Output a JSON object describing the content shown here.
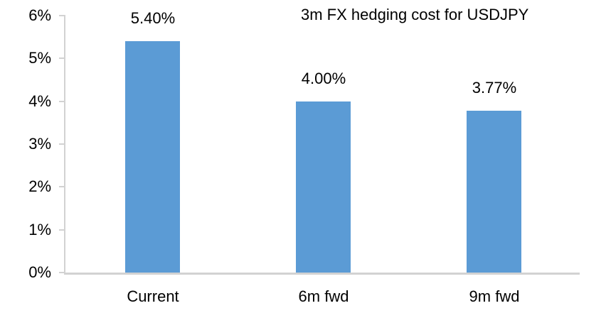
{
  "chart_data": {
    "type": "bar",
    "title": "3m FX hedging cost for USDJPY",
    "categories": [
      "Current",
      "6m fwd",
      "9m fwd"
    ],
    "values": [
      5.4,
      4.0,
      3.77
    ],
    "data_labels": [
      "5.40%",
      "4.00%",
      "3.77%"
    ],
    "xlabel": "",
    "ylabel": "",
    "ylim": [
      0,
      6
    ],
    "yticks": [
      0,
      1,
      2,
      3,
      4,
      5,
      6
    ],
    "ytick_labels": [
      "0%",
      "1%",
      "2%",
      "3%",
      "4%",
      "5%",
      "6%"
    ],
    "grid": false,
    "legend": false,
    "bar_color": "#5B9BD5",
    "axis_color": "#D2D2D2",
    "text_color": "#000000",
    "background_color": "#FFFFFF"
  }
}
